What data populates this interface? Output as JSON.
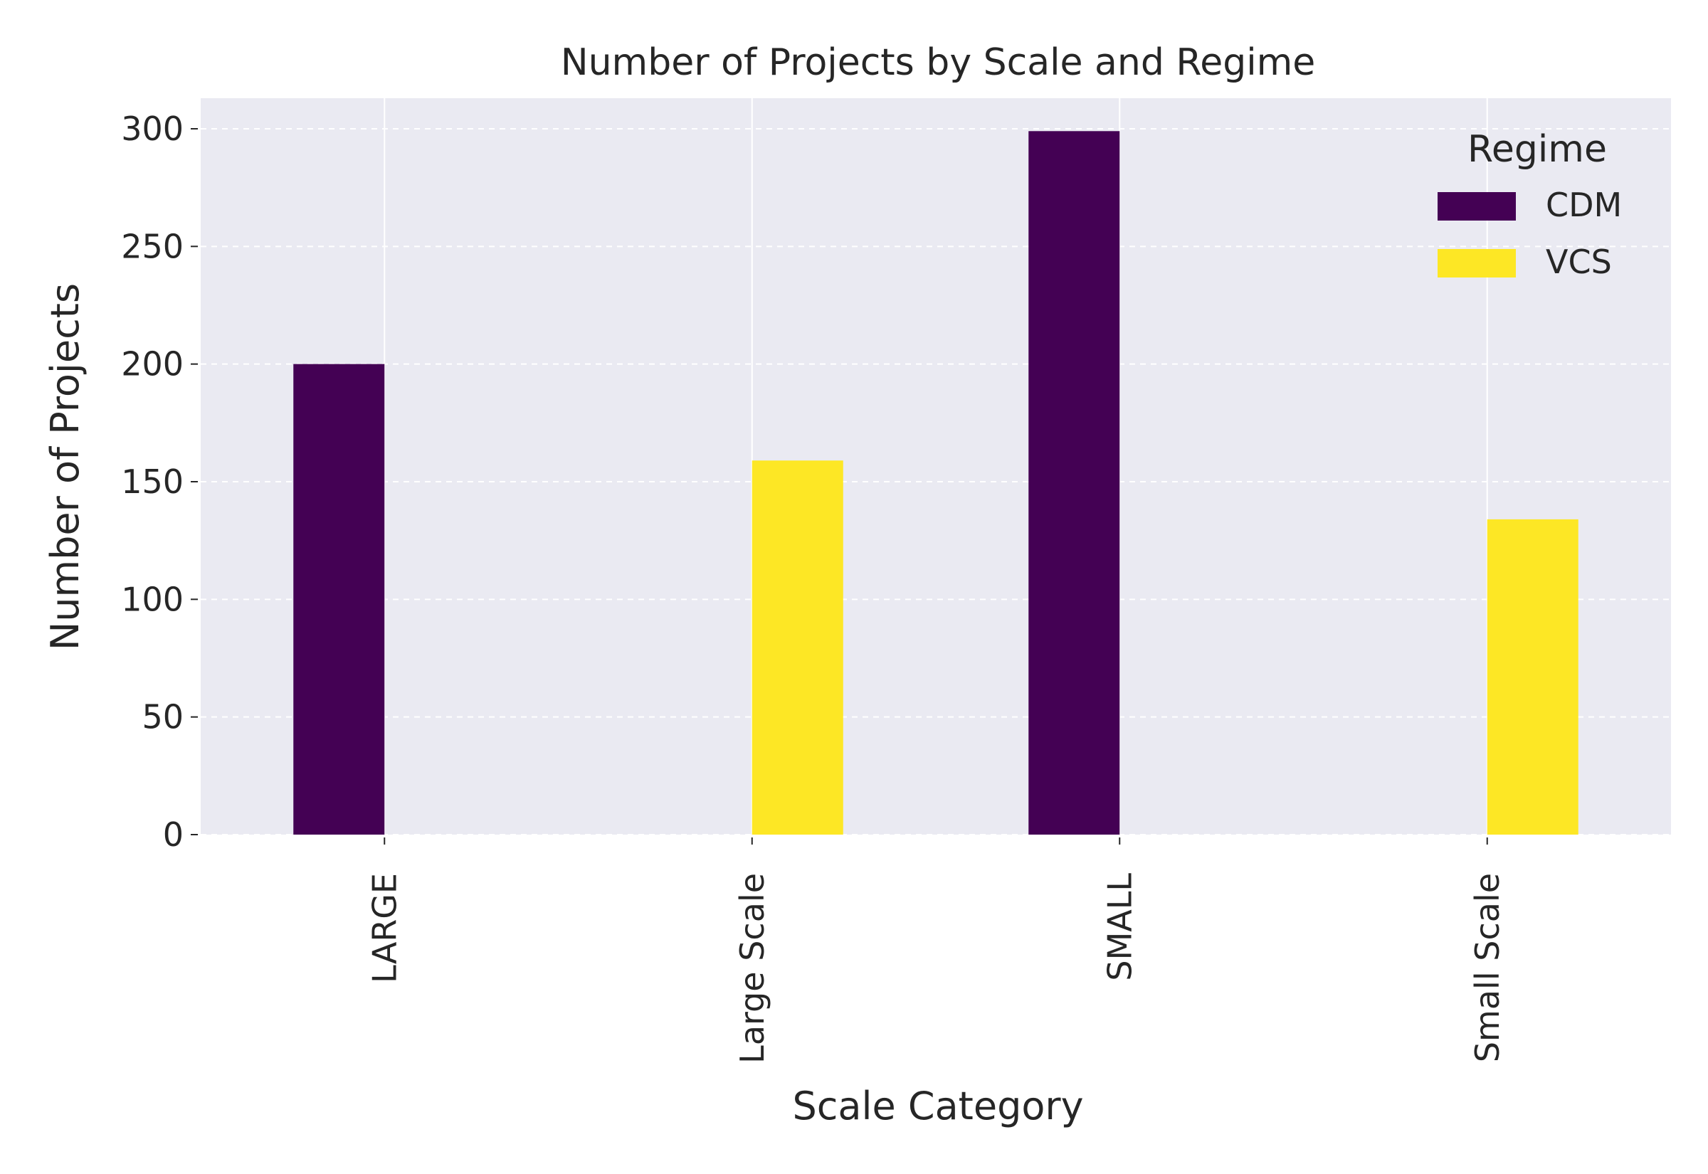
{
  "chart_data": {
    "type": "bar",
    "title": "Number of Projects by Scale and Regime",
    "xlabel": "Scale Category",
    "ylabel": "Number of Projects",
    "categories": [
      "LARGE",
      "Large Scale",
      "SMALL",
      "Small Scale"
    ],
    "series": [
      {
        "name": "CDM",
        "values": [
          200,
          0,
          299,
          0
        ],
        "color": "#440154"
      },
      {
        "name": "VCS",
        "values": [
          0,
          159,
          0,
          134
        ],
        "color": "#fde725"
      }
    ],
    "ylim": [
      0,
      313
    ],
    "yticks": [
      0,
      50,
      100,
      150,
      200,
      250,
      300
    ],
    "grid": true,
    "legend": {
      "title": "Regime",
      "position": "top-right"
    },
    "plot_background": "#eaeaf2",
    "tick_label_rotation": "vertical"
  }
}
